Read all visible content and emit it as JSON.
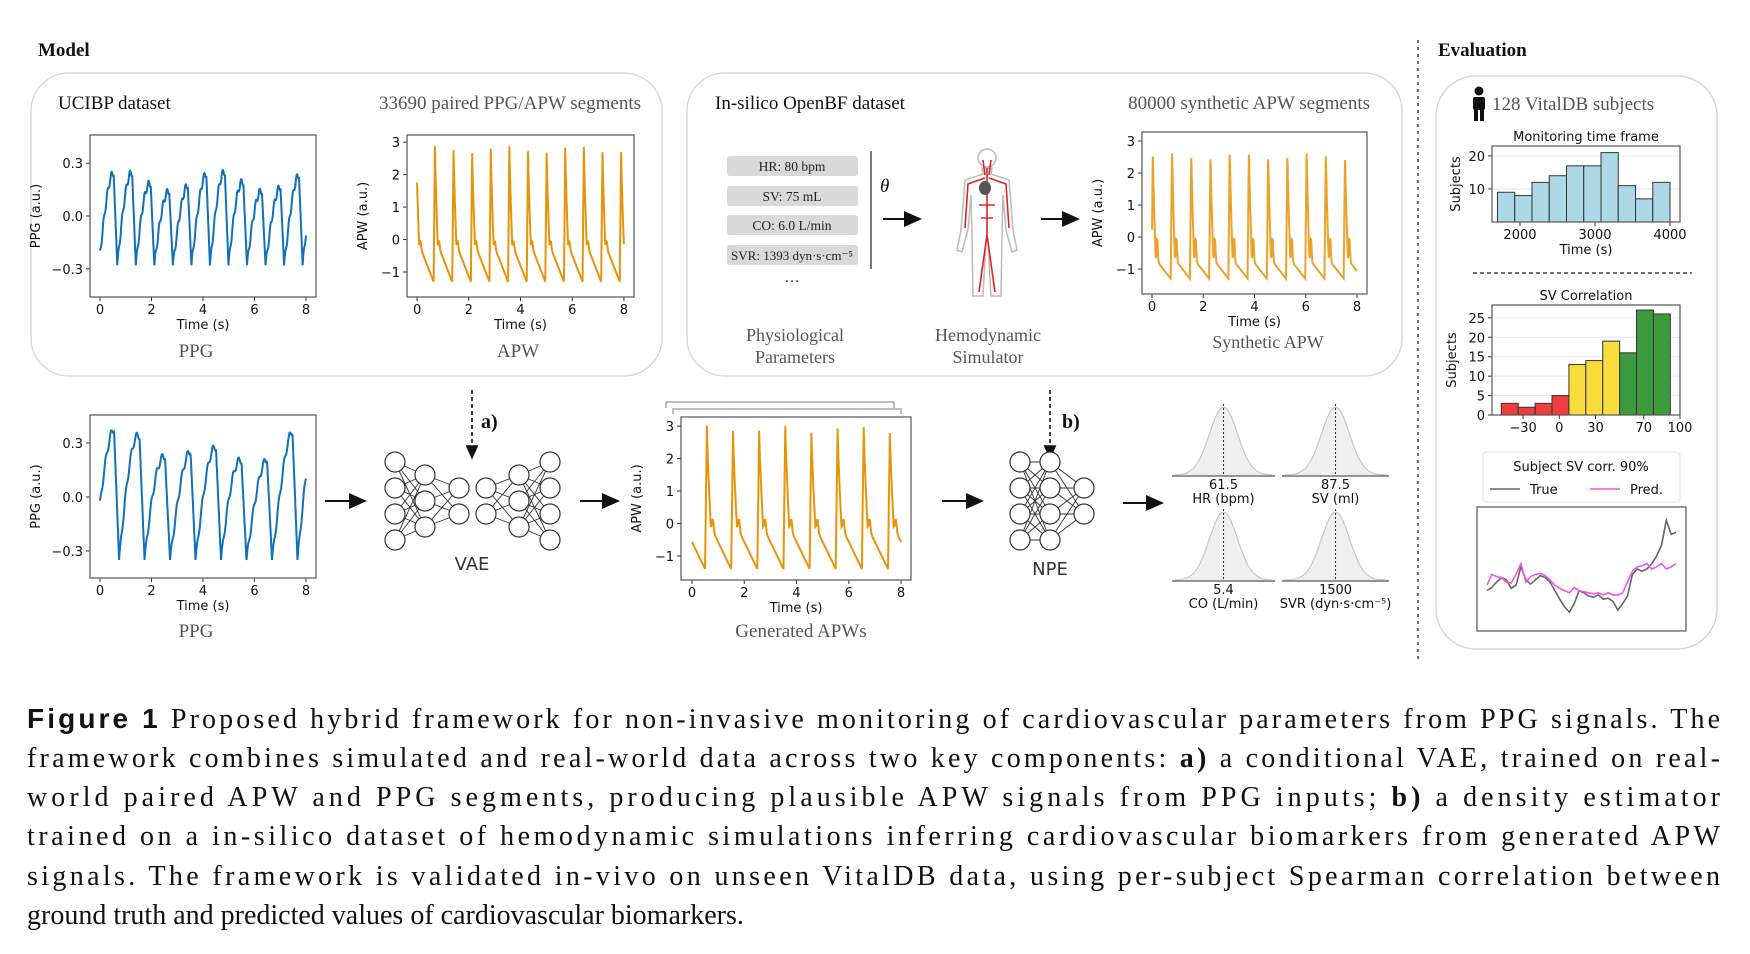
{
  "figure": {
    "model_heading": "Model",
    "evaluation_heading": "Evaluation",
    "ucibp": {
      "title": "UCIBP dataset",
      "count": "33690 paired PPG/APW segments",
      "ppg_label": "PPG",
      "apw_label": "APW"
    },
    "openbf": {
      "title": "In-silico OpenBF dataset",
      "count": "80000 synthetic APW segments",
      "params": [
        "HR: 80 bpm",
        "SV: 75 mL",
        "CO: 6.0 L/min",
        "SVR: 1393 dyn·s·cm⁻⁵"
      ],
      "ellipsis": "…",
      "theta": "θ",
      "param_label": [
        "Physiological",
        "Parameters"
      ],
      "sim_label": [
        "Hemodynamic",
        "Simulator"
      ],
      "synthetic_label": "Synthetic APW"
    },
    "pipeline": {
      "a_label": "a)",
      "b_label": "b)",
      "ppg_label": "PPG",
      "vae_label": "VAE",
      "generated_label": "Generated APWs",
      "npe_label": "NPE"
    },
    "evaluation": {
      "subjects": "128 VitalDB subjects",
      "icon": "person-icon"
    },
    "colors": {
      "ppg": "#1070b8",
      "apw": "#e8940a",
      "hist_time": "#add8e6",
      "red": "#ef3e3e",
      "yellow": "#f8dc3b",
      "green": "#3e9a3e",
      "true": "#666666",
      "pred": "#ee55ee"
    }
  },
  "caption": {
    "label": "Figure 1",
    "lines": [
      [
        "Proposed hybrid framework for non-invasive monitoring of cardiovascular parameters from PPG signals. The"
      ],
      [
        "framework combines simulated and real-world data across two key components: ",
        "a)",
        " a conditional VAE, trained on real-"
      ],
      [
        "world paired APW and PPG segments, producing plausible APW signals from PPG inputs; ",
        "b)",
        " a density estimator"
      ],
      [
        "trained on a in-silico dataset of hemodynamic simulations inferring cardiovascular biomarkers from generated APW"
      ],
      [
        "signals. The framework is validated in-vivo on unseen VitalDB data, using per-subject Spearman correlation between"
      ],
      [
        "ground truth and predicted values of cardiovascular biomarkers."
      ]
    ]
  },
  "chart_data": [
    {
      "id": "ucibp_ppg",
      "type": "line",
      "signal": "PPG",
      "xlabel": "Time (s)",
      "ylabel": "PPG (a.u.)",
      "xlim": [
        -0.39,
        8.39
      ],
      "ylim": [
        -0.46,
        0.46
      ],
      "xticks": [
        0,
        2,
        4,
        6,
        8
      ],
      "xtick_labels": [
        "0",
        "2",
        "4",
        "6",
        "8"
      ],
      "yticks": [
        0.3,
        0.0,
        -0.3
      ],
      "ytick_labels": [
        "0.3",
        "0.0",
        "−0.3"
      ],
      "color": "#1070b8"
    },
    {
      "id": "ucibp_apw",
      "type": "line",
      "signal": "APW",
      "xlabel": "Time (s)",
      "ylabel": "APW (a.u.)",
      "xlim": [
        -0.39,
        8.39
      ],
      "ylim": [
        -1.77,
        3.22
      ],
      "xticks": [
        0,
        2,
        4,
        6,
        8
      ],
      "xtick_labels": [
        "0",
        "2",
        "4",
        "6",
        "8"
      ],
      "yticks": [
        3,
        2,
        1,
        0,
        -1
      ],
      "ytick_labels": [
        "3",
        "2",
        "1",
        "0",
        "−1"
      ],
      "color": "#e8940a"
    },
    {
      "id": "synthetic_apw",
      "type": "line",
      "signal": "Synthetic APW",
      "xlabel": "Time (s)",
      "ylabel": "APW (a.u.)",
      "xlim": [
        -0.39,
        8.39
      ],
      "ylim": [
        -1.78,
        3.28
      ],
      "xticks": [
        0,
        2,
        4,
        6,
        8
      ],
      "xtick_labels": [
        "0",
        "2",
        "4",
        "6",
        "8"
      ],
      "yticks": [
        3,
        2,
        1,
        0,
        -1
      ],
      "ytick_labels": [
        "3",
        "2",
        "1",
        "0",
        "−1"
      ],
      "color": "#eca22a"
    },
    {
      "id": "input_ppg",
      "type": "line",
      "signal": "PPG",
      "xlabel": "Time (s)",
      "ylabel": "PPG (a.u.)",
      "xlim": [
        -0.39,
        8.39
      ],
      "ylim": [
        -0.45,
        0.455
      ],
      "xticks": [
        0,
        2,
        4,
        6,
        8
      ],
      "xtick_labels": [
        "0",
        "2",
        "4",
        "6",
        "8"
      ],
      "yticks": [
        0.3,
        0.0,
        -0.3
      ],
      "ytick_labels": [
        "0.3",
        "0.0",
        "−0.3"
      ],
      "color": "#1070b8"
    },
    {
      "id": "generated_apw",
      "type": "line",
      "signal": "Generated APW",
      "xlabel": "Time (s)",
      "ylabel": "APW (a.u.)",
      "xlim": [
        -0.42,
        8.38
      ],
      "ylim": [
        -1.74,
        3.28
      ],
      "xticks": [
        0,
        2,
        4,
        6,
        8
      ],
      "xtick_labels": [
        "0",
        "2",
        "4",
        "6",
        "8"
      ],
      "yticks": [
        3,
        2,
        1,
        0,
        -1
      ],
      "ytick_labels": [
        "3",
        "2",
        "1",
        "0",
        "−1"
      ],
      "color": "#e8940a"
    },
    {
      "id": "posteriors",
      "type": "density",
      "items": [
        {
          "value": "61.5",
          "label": "HR (bpm)"
        },
        {
          "value": "87.5",
          "label": "SV (ml)"
        },
        {
          "value": "5.4",
          "label": "CO (L/min)"
        },
        {
          "value": "1500",
          "label": "SVR (dyn·s·cm⁻⁵)"
        }
      ]
    },
    {
      "id": "hist_time",
      "type": "bar",
      "title": "Monitoring time frame",
      "xlabel": "Time (s)",
      "ylabel": "Subjects",
      "xlim": [
        1627,
        4133
      ],
      "ylim": [
        0,
        23
      ],
      "xticks": [
        2000,
        3000,
        4000
      ],
      "xtick_labels": [
        "2000",
        "3000",
        "4000"
      ],
      "yticks": [
        20,
        10
      ],
      "ytick_labels": [
        "20",
        "10"
      ],
      "bin_start": 1700,
      "bin_width": 230,
      "counts": [
        9,
        8,
        12,
        14,
        17,
        17,
        21,
        11,
        7,
        12
      ],
      "color": "#add8e6",
      "grid": true
    },
    {
      "id": "hist_sv",
      "type": "bar",
      "title": "SV Correlation",
      "xlabel": "",
      "ylabel": "Subjects",
      "xlim": [
        -55.7,
        100
      ],
      "ylim": [
        0,
        28.3
      ],
      "xticks": [
        -30,
        0,
        30,
        70,
        100
      ],
      "xtick_labels": [
        "−30",
        "0",
        "30",
        "70",
        "100"
      ],
      "yticks": [
        25,
        20,
        15,
        10,
        5,
        0
      ],
      "ytick_labels": [
        "25",
        "20",
        "15",
        "10",
        "5",
        "0"
      ],
      "bin_start": -48,
      "bin_width": 14,
      "counts": [
        3,
        2,
        3,
        5,
        13,
        14,
        19,
        16,
        27,
        26
      ],
      "bar_colors": [
        "#ef3e3e",
        "#ef3e3e",
        "#ef3e3e",
        "#ef3e3e",
        "#f8dc3b",
        "#f8dc3b",
        "#f8dc3b",
        "#3e9a3e",
        "#3e9a3e",
        "#3e9a3e"
      ],
      "grid": true
    },
    {
      "id": "sv_trace",
      "type": "line",
      "legend_title": "Subject SV corr. 90%",
      "legend": "top",
      "ylim": [
        0,
        1
      ],
      "series": [
        {
          "name": "True",
          "color": "#666666",
          "values": [
            0.3,
            0.33,
            0.38,
            0.42,
            0.4,
            0.32,
            0.35,
            0.52,
            0.4,
            0.36,
            0.4,
            0.44,
            0.42,
            0.38,
            0.3,
            0.22,
            0.15,
            0.1,
            0.18,
            0.3,
            0.28,
            0.25,
            0.24,
            0.26,
            0.22,
            0.23,
            0.2,
            0.12,
            0.18,
            0.25,
            0.45,
            0.5,
            0.48,
            0.5,
            0.55,
            0.62,
            0.72,
            0.95,
            0.82,
            0.84
          ]
        },
        {
          "name": "Pred.",
          "color": "#ee55ee",
          "values": [
            0.35,
            0.45,
            0.43,
            0.42,
            0.38,
            0.37,
            0.45,
            0.55,
            0.38,
            0.43,
            0.45,
            0.46,
            0.44,
            0.4,
            0.35,
            0.32,
            0.3,
            0.28,
            0.33,
            0.3,
            0.29,
            0.28,
            0.27,
            0.28,
            0.26,
            0.28,
            0.26,
            0.26,
            0.28,
            0.38,
            0.48,
            0.52,
            0.53,
            0.55,
            0.5,
            0.52,
            0.55,
            0.5,
            0.52,
            0.55
          ]
        }
      ]
    }
  ]
}
